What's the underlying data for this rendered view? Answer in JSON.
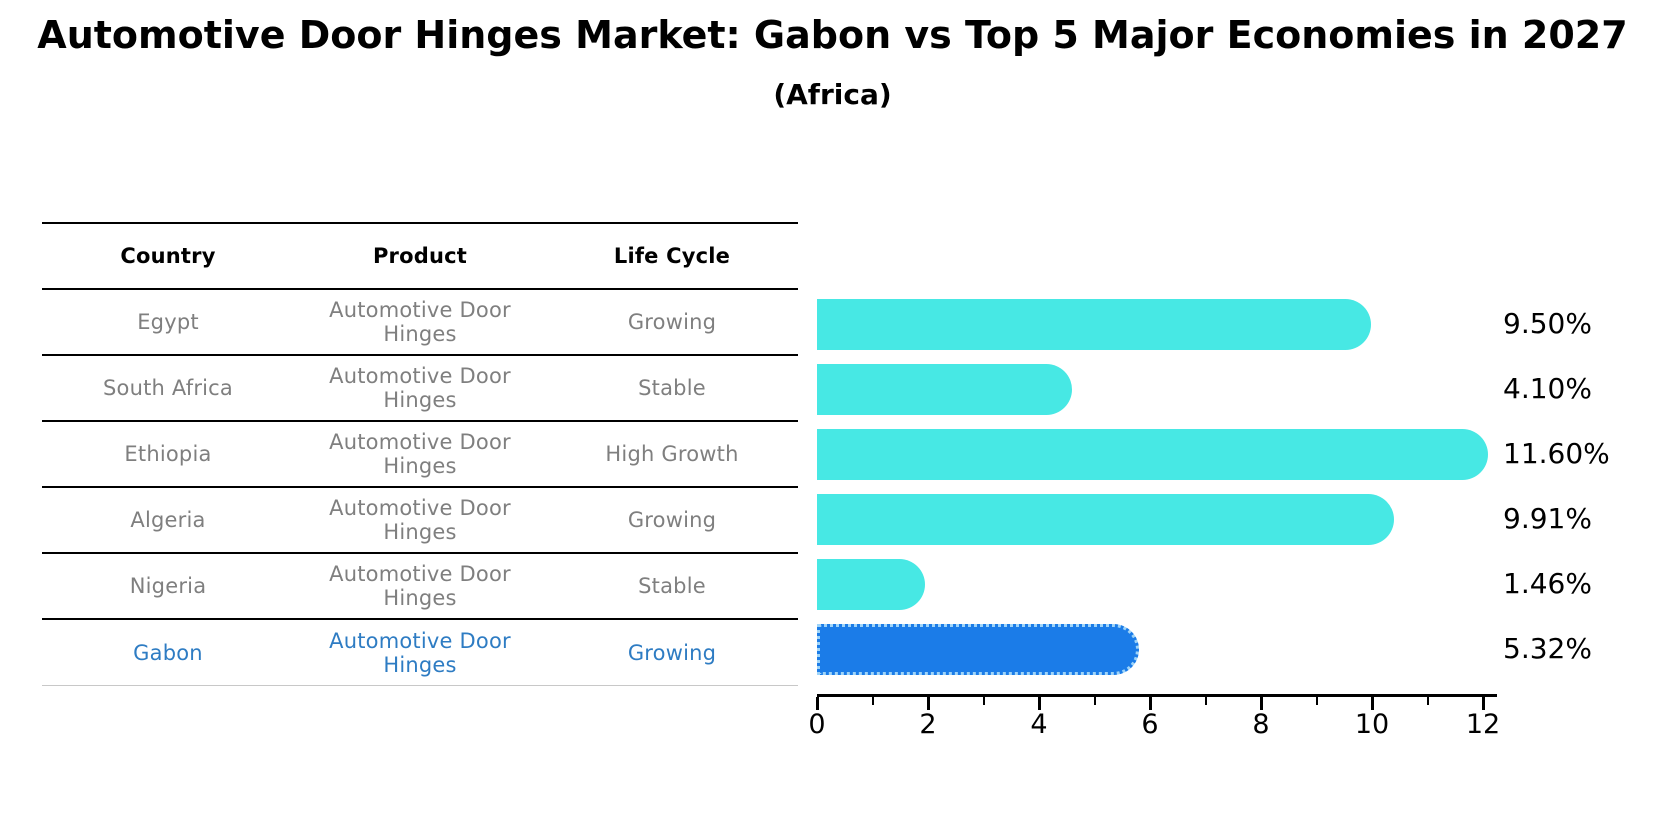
{
  "title": "Automotive Door Hinges Market: Gabon vs Top 5 Major Economies in 2027",
  "subtitle": "(Africa)",
  "table": {
    "headers": [
      "Country",
      "Product",
      "Life Cycle"
    ],
    "rows": [
      {
        "country": "Egypt",
        "product": "Automotive Door Hinges",
        "life_cycle": "Growing",
        "highlight": false
      },
      {
        "country": "South Africa",
        "product": "Automotive Door Hinges",
        "life_cycle": "Stable",
        "highlight": false
      },
      {
        "country": "Ethiopia",
        "product": "Automotive Door Hinges",
        "life_cycle": "High Growth",
        "highlight": false
      },
      {
        "country": "Algeria",
        "product": "Automotive Door Hinges",
        "life_cycle": "Growing",
        "highlight": false
      },
      {
        "country": "Nigeria",
        "product": "Automotive Door Hinges",
        "life_cycle": "Stable",
        "highlight": false
      },
      {
        "country": "Gabon",
        "product": "Automotive Door Hinges",
        "life_cycle": "Growing",
        "highlight": true
      }
    ]
  },
  "chart_data": {
    "type": "bar",
    "orientation": "horizontal",
    "title": "Automotive Door Hinges Market: Gabon vs Top 5 Major Economies in 2027",
    "subtitle": "(Africa)",
    "categories": [
      "Egypt",
      "South Africa",
      "Ethiopia",
      "Algeria",
      "Nigeria",
      "Gabon"
    ],
    "values": [
      9.5,
      4.1,
      11.6,
      9.91,
      1.46,
      5.32
    ],
    "value_labels": [
      "9.50%",
      "4.10%",
      "11.60%",
      "9.91%",
      "1.46%",
      "5.32%"
    ],
    "highlight_index": 5,
    "xlim": [
      0,
      12.2
    ],
    "x_ticks": [
      0,
      2,
      4,
      6,
      8,
      10,
      12
    ],
    "x_minor_ticks": [
      1,
      3,
      5,
      7,
      9,
      11
    ],
    "grid": false,
    "legend": "none",
    "bar_color": "#47e8e4",
    "highlight_bar_color": "#1b7ce8",
    "highlight_bar_border": "#9fd4f8",
    "highlight_text_color": "#2e7cc3"
  }
}
